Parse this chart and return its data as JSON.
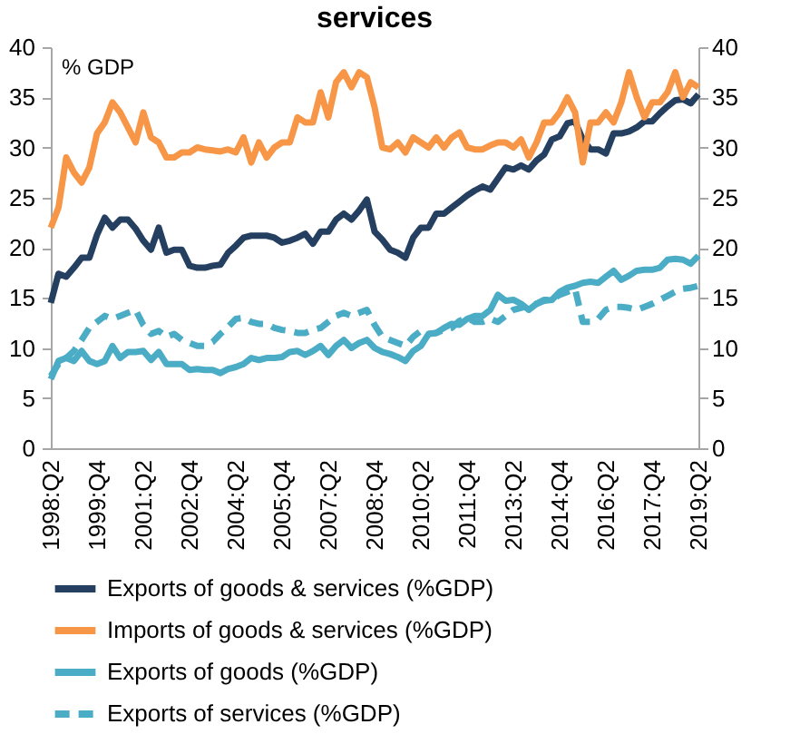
{
  "chart_data": {
    "type": "line",
    "title": "services",
    "annotations": [
      "% GDP"
    ],
    "categories": [
      "1998:Q2",
      null,
      null,
      null,
      null,
      null,
      "1999:Q4",
      null,
      null,
      null,
      null,
      null,
      "2001:Q2",
      null,
      null,
      null,
      null,
      null,
      "2002:Q4",
      null,
      null,
      null,
      null,
      null,
      "2004:Q2",
      null,
      null,
      null,
      null,
      null,
      "2005:Q4",
      null,
      null,
      null,
      null,
      null,
      "2007:Q2",
      null,
      null,
      null,
      null,
      null,
      "2008:Q4",
      null,
      null,
      null,
      null,
      null,
      "2010:Q2",
      null,
      null,
      null,
      null,
      null,
      "2011:Q4",
      null,
      null,
      null,
      null,
      null,
      "2013:Q2",
      null,
      null,
      null,
      null,
      null,
      "2014:Q4",
      null,
      null,
      null,
      null,
      null,
      "2016:Q2",
      null,
      null,
      null,
      null,
      null,
      "2017:Q4",
      null,
      null,
      null,
      null,
      null,
      "2019:Q2"
    ],
    "ylim": [
      0,
      40
    ],
    "yticks": [
      0,
      5,
      10,
      15,
      20,
      25,
      30,
      35,
      40
    ],
    "y2lim": [
      0,
      40
    ],
    "y2ticks": [
      0,
      5,
      10,
      15,
      20,
      25,
      30,
      35,
      40
    ],
    "grid": false,
    "legend": "bottom",
    "series": [
      {
        "name": "Exports of goods & services (%GDP)",
        "color": "#243f60",
        "line_style": "solid",
        "values": [
          14.5,
          17.4,
          17.1,
          18,
          19,
          19,
          21.3,
          23,
          22,
          22.8,
          22.8,
          21.9,
          20.7,
          19.8,
          22,
          19.5,
          19.8,
          19.8,
          18.2,
          18,
          18,
          18.2,
          18.3,
          19.5,
          20.2,
          21,
          21.2,
          21.2,
          21.2,
          21,
          20.5,
          20.7,
          21,
          21.4,
          20.4,
          21.6,
          21.6,
          22.8,
          23.4,
          22.8,
          23.7,
          24.8,
          21.6,
          20.8,
          19.8,
          19.5,
          19,
          21,
          22,
          22,
          23.4,
          23.4,
          24,
          24.6,
          25.2,
          25.7,
          26.1,
          25.8,
          26.9,
          28,
          27.8,
          28.2,
          27.8,
          28.7,
          29.3,
          30.8,
          31.1,
          32.4,
          32.6,
          30.8,
          29.8,
          29.8,
          29.4,
          31.4,
          31.4,
          31.6,
          32,
          32.6,
          32.6,
          33.4,
          34.1,
          34.7,
          34.8,
          34.4,
          35.3
        ]
      },
      {
        "name": "Imports of goods & services (%GDP)",
        "color": "#f79646",
        "line_style": "solid",
        "values": [
          22,
          24,
          29,
          27.5,
          26.5,
          28,
          31.4,
          32.5,
          34.5,
          33.5,
          32,
          30.5,
          33.5,
          31,
          30.5,
          29,
          29,
          29.5,
          29.5,
          30,
          29.8,
          29.7,
          29.6,
          29.8,
          29.5,
          31,
          28.5,
          30.5,
          29,
          30,
          30.5,
          30.5,
          33,
          32.5,
          32.5,
          35.5,
          33,
          36.5,
          37.5,
          36,
          37.5,
          37,
          34,
          30,
          29.8,
          30.5,
          29.5,
          31,
          30.5,
          30,
          31,
          30,
          31,
          31.5,
          30,
          29.8,
          29.8,
          30.2,
          30.5,
          30.5,
          30,
          30.8,
          29,
          30.5,
          32.5,
          32.5,
          33.5,
          35,
          33.5,
          28.5,
          32.5,
          32.5,
          33.5,
          32.5,
          34.5,
          37.5,
          35,
          33,
          34.5,
          34.5,
          35.5,
          37.5,
          35,
          36.5,
          36
        ]
      },
      {
        "name": "Exports of goods (%GDP)",
        "color": "#4bacc6",
        "line_style": "solid",
        "values": [
          6.9,
          8.7,
          9,
          8.7,
          9.7,
          8.7,
          8.4,
          8.7,
          10.2,
          9,
          9.6,
          9.6,
          9.7,
          8.8,
          9.6,
          8.4,
          8.4,
          8.4,
          7.8,
          7.9,
          7.8,
          7.8,
          7.5,
          7.9,
          8.1,
          8.4,
          9,
          8.8,
          9,
          9,
          9.1,
          9.6,
          9.7,
          9.3,
          9.7,
          10.2,
          9.3,
          10.2,
          10.8,
          10,
          10.5,
          10.8,
          10,
          9.6,
          9.4,
          9.1,
          8.7,
          9.7,
          10.2,
          11.4,
          11.5,
          12,
          12.4,
          12.3,
          12.9,
          13.2,
          13.2,
          13.8,
          15.3,
          14.7,
          14.8,
          14.4,
          13.8,
          14.4,
          14.7,
          14.8,
          15.6,
          16,
          16.2,
          16.5,
          16.6,
          16.5,
          17.1,
          17.7,
          16.8,
          17.2,
          17.7,
          17.8,
          17.8,
          18,
          18.8,
          18.9,
          18.8,
          18.4,
          19.2
        ]
      },
      {
        "name": "Exports of services (%GDP)",
        "color": "#4bacc6",
        "line_style": "dashed",
        "values": [
          7.2,
          8.4,
          9,
          9.7,
          10.8,
          12,
          12.6,
          13.2,
          12.9,
          13.2,
          13.5,
          13.8,
          12.3,
          11.4,
          11.7,
          11.1,
          11.4,
          10.8,
          10.5,
          10.2,
          10.2,
          10.6,
          11.4,
          12.1,
          12.9,
          13,
          12.6,
          12.4,
          12.4,
          12,
          11.8,
          11.7,
          11.5,
          11.5,
          11.8,
          12,
          12.6,
          13.2,
          13.5,
          13.2,
          13.5,
          13.8,
          12.3,
          11.1,
          10.8,
          10.5,
          10.2,
          11.1,
          11.7,
          11.4,
          11.5,
          11.8,
          12,
          12.7,
          13,
          12.6,
          12.6,
          12.9,
          12.6,
          13.2,
          13.8,
          14,
          14.2,
          14.4,
          14.8,
          14.8,
          15.3,
          15.6,
          15.9,
          12.6,
          12.6,
          12.9,
          13.8,
          14.1,
          14.1,
          14,
          13.8,
          14.1,
          14.4,
          14.8,
          15.2,
          15.6,
          15.9,
          16,
          16.2
        ]
      }
    ]
  }
}
